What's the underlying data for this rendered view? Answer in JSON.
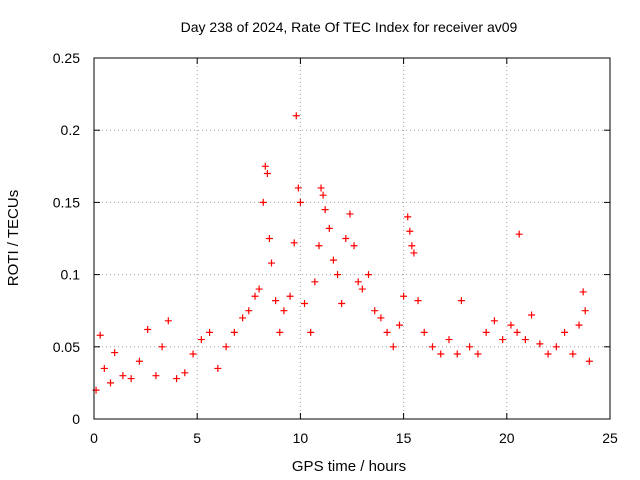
{
  "chart_data": {
    "type": "scatter",
    "title": "Day 238 of 2024, Rate Of TEC Index for receiver av09",
    "xlabel": "GPS time / hours",
    "ylabel": "ROTI / TECUs",
    "xlim": [
      0,
      25
    ],
    "ylim": [
      0,
      0.25
    ],
    "xticks": [
      0,
      5,
      10,
      15,
      20,
      25
    ],
    "yticks": [
      0,
      0.05,
      0.1,
      0.15,
      0.2,
      0.25
    ],
    "xtick_labels": [
      "0",
      "5",
      "10",
      "15",
      "20",
      "25"
    ],
    "ytick_labels": [
      "0",
      "0.05",
      "0.1",
      "0.15",
      "0.2",
      "0.25"
    ],
    "grid": true,
    "marker": "+",
    "color": "#ff0000",
    "series": [
      {
        "x": [
          0.1,
          0.3,
          0.5,
          0.8,
          1.0,
          1.4,
          1.8,
          2.2,
          2.6,
          3.0,
          3.3,
          3.6,
          4.0,
          4.4,
          4.8,
          5.2,
          5.6,
          6.0,
          6.4,
          6.8,
          7.2,
          7.5,
          7.8,
          8.0,
          8.2,
          8.3,
          8.4,
          8.5,
          8.6,
          8.8,
          9.0,
          9.2,
          9.5,
          9.7,
          9.8,
          9.9,
          10.0,
          10.2,
          10.5,
          10.7,
          10.9,
          11.0,
          11.1,
          11.2,
          11.4,
          11.6,
          11.8,
          12.0,
          12.2,
          12.4,
          12.6,
          12.8,
          13.0,
          13.3,
          13.6,
          13.9,
          14.2,
          14.5,
          14.8,
          15.0,
          15.2,
          15.3,
          15.4,
          15.5,
          15.7,
          16.0,
          16.4,
          16.8,
          17.2,
          17.6,
          17.8,
          18.2,
          18.6,
          19.0,
          19.4,
          19.8,
          20.2,
          20.5,
          20.6,
          20.9,
          21.2,
          21.6,
          22.0,
          22.4,
          22.8,
          23.2,
          23.5,
          23.7,
          23.8,
          24.0
        ],
        "y": [
          0.02,
          0.058,
          0.035,
          0.025,
          0.046,
          0.03,
          0.028,
          0.04,
          0.062,
          0.03,
          0.05,
          0.068,
          0.028,
          0.032,
          0.045,
          0.055,
          0.06,
          0.035,
          0.05,
          0.06,
          0.07,
          0.075,
          0.085,
          0.09,
          0.15,
          0.175,
          0.17,
          0.125,
          0.108,
          0.082,
          0.06,
          0.075,
          0.085,
          0.122,
          0.21,
          0.16,
          0.15,
          0.08,
          0.06,
          0.095,
          0.12,
          0.16,
          0.155,
          0.145,
          0.132,
          0.11,
          0.1,
          0.08,
          0.125,
          0.142,
          0.12,
          0.095,
          0.09,
          0.1,
          0.075,
          0.07,
          0.06,
          0.05,
          0.065,
          0.085,
          0.14,
          0.13,
          0.12,
          0.115,
          0.082,
          0.06,
          0.05,
          0.045,
          0.055,
          0.045,
          0.082,
          0.05,
          0.045,
          0.06,
          0.068,
          0.055,
          0.065,
          0.06,
          0.128,
          0.055,
          0.072,
          0.052,
          0.045,
          0.05,
          0.06,
          0.045,
          0.065,
          0.088,
          0.075,
          0.04
        ]
      }
    ]
  }
}
